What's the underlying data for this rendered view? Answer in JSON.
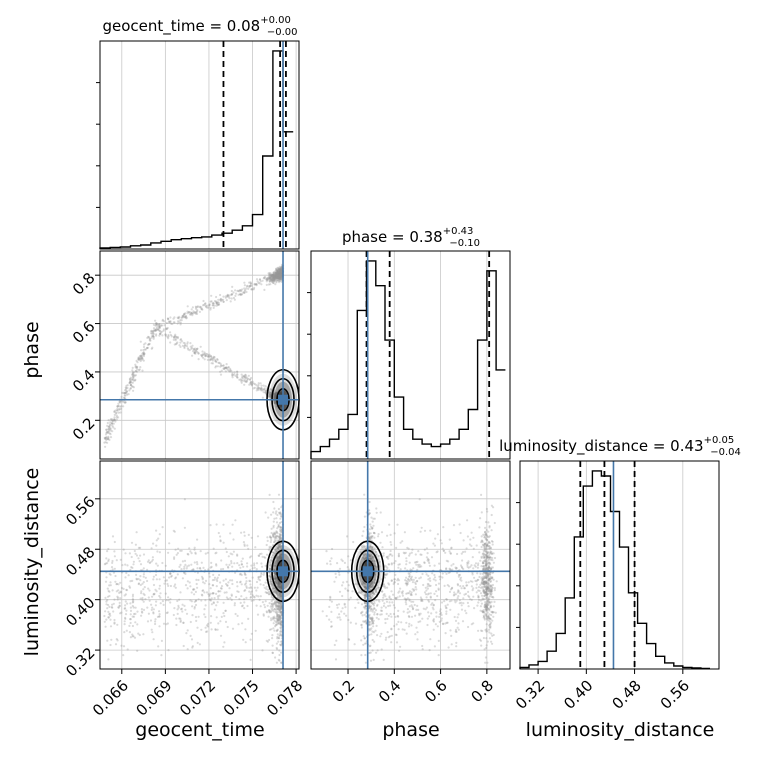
{
  "chart_data": {
    "type": "corner",
    "parameters": [
      "geocent_time",
      "phase",
      "luminosity_distance"
    ],
    "truths": {
      "geocent_time": 0.0771,
      "phase": 0.285,
      "luminosity_distance": 0.445
    },
    "colors": {
      "truth": "#4477aa",
      "contour": "#000000",
      "hist": "#000000",
      "grid": "#c8c8c8",
      "scatter": "#999999"
    },
    "titles": {
      "geocent_time": {
        "prefix": "geocent_time = 0.08",
        "plus": "+0.00",
        "minus": "−0.00"
      },
      "phase": {
        "prefix": "phase = 0.38",
        "plus": "+0.43",
        "minus": "−0.10"
      },
      "luminosity_distance": {
        "prefix": "luminosity_distance = 0.43",
        "plus": "+0.05",
        "minus": "−0.04"
      }
    },
    "axes": {
      "geocent_time": {
        "label": "geocent_time",
        "range": [
          0.0645,
          0.0782
        ],
        "ticks": [
          0.066,
          0.069,
          0.072,
          0.075,
          0.078
        ],
        "tick_labels": [
          "0.066",
          "0.069",
          "0.072",
          "0.075",
          "0.078"
        ]
      },
      "phase": {
        "label": "phase",
        "range": [
          0.04,
          0.9
        ],
        "ticks": [
          0.2,
          0.4,
          0.6,
          0.8
        ],
        "tick_labels": [
          "0.2",
          "0.4",
          "0.6",
          "0.8"
        ]
      },
      "luminosity_distance": {
        "label": "luminosity_distance",
        "range": [
          0.29,
          0.62
        ],
        "ticks": [
          0.32,
          0.4,
          0.48,
          0.56
        ],
        "tick_labels": [
          "0.32",
          "0.40",
          "0.48",
          "0.56"
        ]
      }
    },
    "histograms": {
      "geocent_time": {
        "edges": [
          0.0645,
          0.0652,
          0.0659,
          0.0666,
          0.0673,
          0.068,
          0.0687,
          0.0694,
          0.0701,
          0.0708,
          0.0715,
          0.0722,
          0.0729,
          0.0736,
          0.0743,
          0.075,
          0.0757,
          0.0764,
          0.0771,
          0.0778
        ],
        "counts": [
          0.5,
          0.8,
          1.0,
          1.6,
          2.0,
          3.0,
          3.8,
          4.6,
          5.1,
          5.6,
          6.0,
          6.9,
          7.8,
          9.3,
          11.5,
          17.0,
          46.0,
          98.0,
          58.0
        ],
        "quantiles": [
          0.073,
          0.0769,
          0.0773
        ]
      },
      "phase": {
        "edges": [
          0.04,
          0.08,
          0.12,
          0.16,
          0.2,
          0.24,
          0.28,
          0.32,
          0.36,
          0.4,
          0.44,
          0.48,
          0.52,
          0.56,
          0.6,
          0.64,
          0.68,
          0.72,
          0.76,
          0.8,
          0.84,
          0.88
        ],
        "counts": [
          3,
          5,
          8,
          12,
          18,
          60,
          80,
          70,
          48,
          25,
          12,
          8,
          6,
          5,
          6,
          8,
          12,
          20,
          48,
          76,
          36
        ],
        "quantiles": [
          0.28,
          0.38,
          0.81
        ]
      },
      "luminosity_distance": {
        "edges": [
          0.29,
          0.305,
          0.32,
          0.335,
          0.35,
          0.365,
          0.38,
          0.395,
          0.41,
          0.425,
          0.44,
          0.455,
          0.47,
          0.485,
          0.5,
          0.515,
          0.53,
          0.545,
          0.56,
          0.575,
          0.59,
          0.605
        ],
        "counts": [
          0.3,
          0.8,
          1.5,
          3.5,
          7,
          14,
          26,
          36,
          39,
          38,
          31,
          24,
          15,
          9,
          5,
          2.5,
          1.2,
          0.6,
          0.3,
          0.2,
          0.1
        ],
        "quantiles": [
          0.39,
          0.43,
          0.48
        ]
      }
    }
  }
}
